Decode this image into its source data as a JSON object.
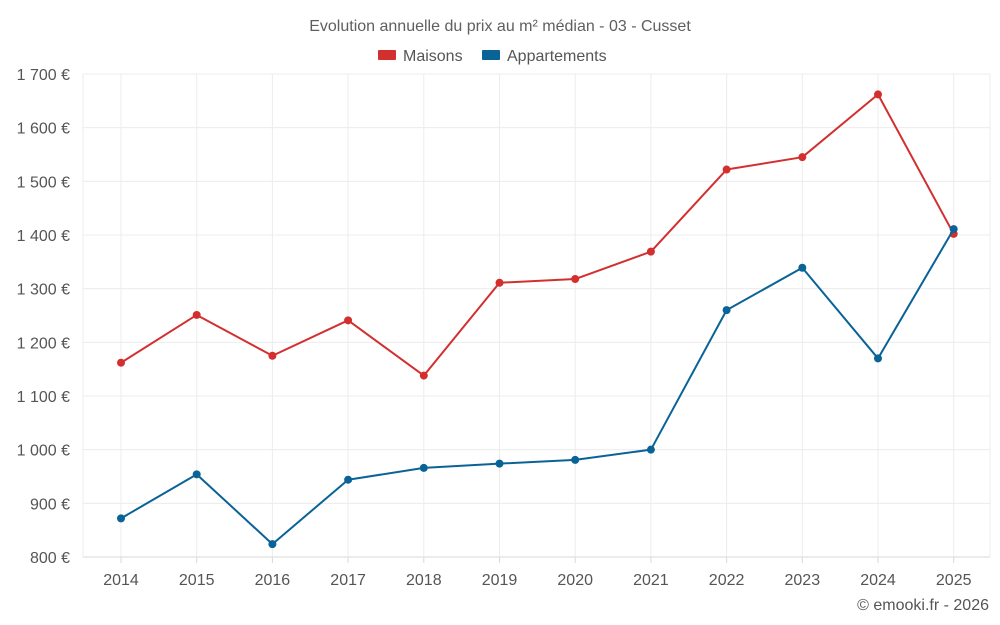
{
  "chart_data": {
    "type": "line",
    "title": "Evolution annuelle du prix au m² médian - 03 - Cusset",
    "xlabel": "",
    "ylabel": "",
    "categories": [
      "2014",
      "2015",
      "2016",
      "2017",
      "2018",
      "2019",
      "2020",
      "2021",
      "2022",
      "2023",
      "2024",
      "2025"
    ],
    "ylim": [
      800,
      1700
    ],
    "yticks": [
      800,
      900,
      1000,
      1100,
      1200,
      1300,
      1400,
      1500,
      1600,
      1700
    ],
    "ytick_labels": [
      "800 €",
      "900 €",
      "1 000 €",
      "1 100 €",
      "1 200 €",
      "1 300 €",
      "1 400 €",
      "1 500 €",
      "1 600 €",
      "1 700 €"
    ],
    "grid": true,
    "legend_position": "top-center",
    "series": [
      {
        "name": "Maisons",
        "color": "#d32f2f",
        "values": [
          1162,
          1251,
          1175,
          1241,
          1138,
          1311,
          1318,
          1369,
          1522,
          1545,
          1662,
          1402
        ]
      },
      {
        "name": "Appartements",
        "color": "#0a6396",
        "values": [
          872,
          954,
          824,
          944,
          966,
          974,
          981,
          1000,
          1260,
          1339,
          1170,
          1411
        ]
      }
    ]
  },
  "credit": "© emooki.fr - 2026"
}
